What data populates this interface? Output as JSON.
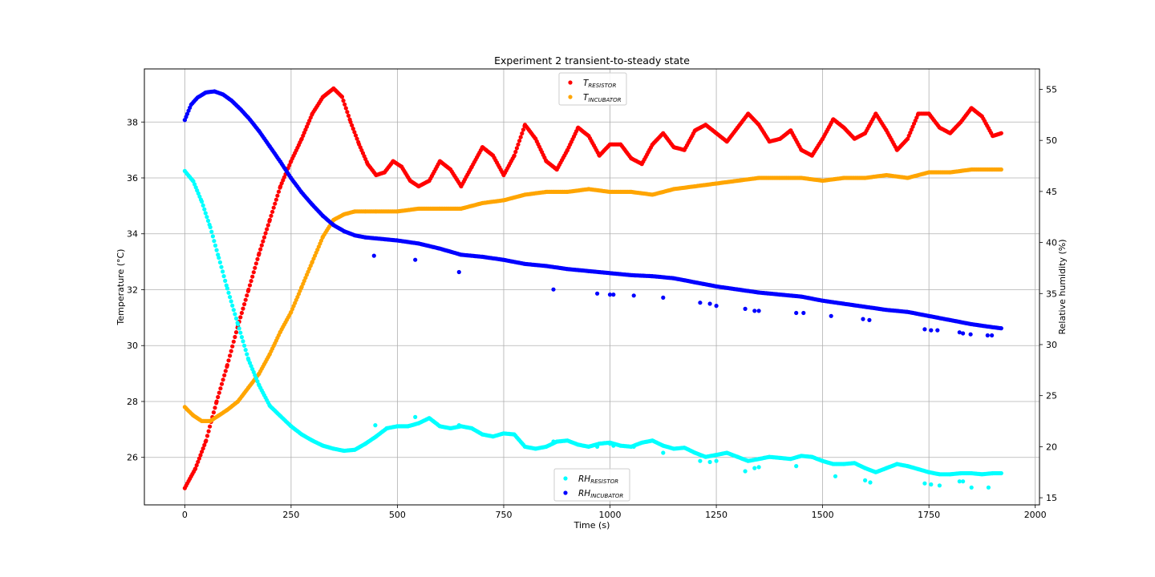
{
  "chart_data": {
    "type": "scatter",
    "title": "Experiment 2 transient-to-steady state",
    "xlabel": "Time (s)",
    "ylabel_left": "Temperature (°C)",
    "ylabel_right": "Relative humidity (%)",
    "xlim": [
      -95,
      2010
    ],
    "ylim_left": [
      24.3,
      39.9
    ],
    "ylim_right": [
      14.3,
      57.0
    ],
    "x_ticks": [
      0,
      250,
      500,
      750,
      1000,
      1250,
      1500,
      1750,
      2000
    ],
    "y_ticks_left": [
      26,
      28,
      30,
      32,
      34,
      36,
      38
    ],
    "y_ticks_right": [
      15,
      20,
      25,
      30,
      35,
      40,
      45,
      50,
      55
    ],
    "grid": true,
    "legends": [
      {
        "placement": "top-center",
        "entries": [
          {
            "series": "T_resistor",
            "base": "T",
            "sub": "RESISTOR"
          },
          {
            "series": "T_incubator",
            "base": "T",
            "sub": "INCUBATOR"
          }
        ]
      },
      {
        "placement": "bottom-center",
        "entries": [
          {
            "series": "RH_resistor",
            "base": "RH",
            "sub": "RESISTOR"
          },
          {
            "series": "RH_incubator",
            "base": "RH",
            "sub": "INCUBATOR"
          }
        ]
      }
    ],
    "series": [
      {
        "key": "T_resistor",
        "axis": "left",
        "color": "#ff0000",
        "x": [
          0,
          25,
          50,
          75,
          100,
          125,
          150,
          175,
          200,
          225,
          250,
          275,
          300,
          325,
          350,
          370,
          390,
          410,
          430,
          450,
          470,
          490,
          510,
          530,
          550,
          575,
          600,
          625,
          650,
          675,
          700,
          725,
          750,
          775,
          800,
          825,
          850,
          875,
          900,
          925,
          950,
          975,
          1000,
          1025,
          1050,
          1075,
          1100,
          1125,
          1150,
          1175,
          1200,
          1225,
          1250,
          1275,
          1300,
          1325,
          1350,
          1375,
          1400,
          1425,
          1450,
          1475,
          1500,
          1525,
          1550,
          1575,
          1600,
          1625,
          1650,
          1675,
          1700,
          1725,
          1750,
          1775,
          1800,
          1825,
          1850,
          1875,
          1900,
          1920
        ],
        "y": [
          24.9,
          25.6,
          26.6,
          28.0,
          29.3,
          30.7,
          32.0,
          33.3,
          34.5,
          35.7,
          36.6,
          37.4,
          38.3,
          38.9,
          39.2,
          38.9,
          38.0,
          37.2,
          36.5,
          36.1,
          36.2,
          36.6,
          36.4,
          35.9,
          35.7,
          35.9,
          36.6,
          36.3,
          35.7,
          36.4,
          37.1,
          36.8,
          36.1,
          36.8,
          37.9,
          37.4,
          36.6,
          36.3,
          37.0,
          37.8,
          37.5,
          36.8,
          37.2,
          37.2,
          36.7,
          36.5,
          37.2,
          37.6,
          37.1,
          37.0,
          37.7,
          37.9,
          37.6,
          37.3,
          37.8,
          38.3,
          37.9,
          37.3,
          37.4,
          37.7,
          37.0,
          36.8,
          37.4,
          38.1,
          37.8,
          37.4,
          37.6,
          38.3,
          37.7,
          37.0,
          37.4,
          38.3,
          38.3,
          37.8,
          37.6,
          38.0,
          38.5,
          38.2,
          37.5,
          37.6
        ]
      },
      {
        "key": "T_incubator",
        "axis": "left",
        "color": "#ffa500",
        "x": [
          0,
          20,
          40,
          60,
          80,
          100,
          125,
          150,
          175,
          200,
          225,
          250,
          275,
          300,
          325,
          350,
          375,
          400,
          425,
          450,
          500,
          550,
          600,
          650,
          700,
          750,
          800,
          850,
          900,
          950,
          1000,
          1050,
          1100,
          1150,
          1200,
          1250,
          1300,
          1350,
          1400,
          1450,
          1500,
          1550,
          1600,
          1650,
          1700,
          1750,
          1800,
          1850,
          1900,
          1920
        ],
        "y": [
          27.8,
          27.5,
          27.3,
          27.3,
          27.5,
          27.7,
          28.0,
          28.5,
          29.0,
          29.7,
          30.5,
          31.2,
          32.1,
          33.0,
          33.9,
          34.5,
          34.7,
          34.8,
          34.8,
          34.8,
          34.8,
          34.9,
          34.9,
          34.9,
          35.1,
          35.2,
          35.4,
          35.5,
          35.5,
          35.6,
          35.5,
          35.5,
          35.4,
          35.6,
          35.7,
          35.8,
          35.9,
          36.0,
          36.0,
          36.0,
          35.9,
          36.0,
          36.0,
          36.1,
          36.0,
          36.2,
          36.2,
          36.3,
          36.3,
          36.3
        ]
      },
      {
        "key": "RH_resistor",
        "axis": "right",
        "color": "#00ffff",
        "x": [
          0,
          20,
          40,
          60,
          80,
          100,
          125,
          150,
          175,
          200,
          225,
          250,
          275,
          300,
          325,
          350,
          375,
          400,
          425,
          450,
          475,
          500,
          525,
          550,
          575,
          600,
          625,
          650,
          675,
          700,
          725,
          750,
          775,
          800,
          825,
          850,
          875,
          900,
          925,
          950,
          975,
          1000,
          1025,
          1050,
          1075,
          1100,
          1125,
          1150,
          1175,
          1200,
          1225,
          1250,
          1275,
          1300,
          1325,
          1350,
          1375,
          1400,
          1425,
          1450,
          1475,
          1500,
          1525,
          1550,
          1575,
          1600,
          1625,
          1650,
          1675,
          1700,
          1725,
          1750,
          1775,
          1800,
          1825,
          1850,
          1875,
          1900,
          1920
        ],
        "y": [
          47.0,
          46.0,
          44.0,
          41.5,
          38.5,
          35.5,
          32.0,
          28.5,
          26.0,
          24.0,
          23.0,
          22.0,
          21.2,
          20.6,
          20.1,
          19.8,
          19.6,
          19.7,
          20.3,
          21.0,
          21.8,
          22.0,
          22.0,
          22.3,
          22.8,
          22.0,
          21.8,
          22.0,
          21.8,
          21.2,
          21.0,
          21.3,
          21.2,
          20.0,
          19.8,
          20.0,
          20.5,
          20.6,
          20.2,
          20.0,
          20.3,
          20.4,
          20.1,
          20.0,
          20.4,
          20.6,
          20.1,
          19.8,
          19.9,
          19.4,
          19.0,
          19.2,
          19.4,
          19.0,
          18.6,
          18.8,
          19.0,
          18.9,
          18.8,
          19.1,
          19.0,
          18.6,
          18.3,
          18.3,
          18.4,
          17.9,
          17.5,
          17.9,
          18.3,
          18.1,
          17.8,
          17.5,
          17.3,
          17.3,
          17.4,
          17.4,
          17.3,
          17.4,
          17.4
        ]
      },
      {
        "key": "RH_incubator",
        "axis": "right",
        "color": "#0000ff",
        "x": [
          0,
          15,
          30,
          50,
          70,
          90,
          110,
          130,
          150,
          175,
          200,
          225,
          250,
          275,
          300,
          325,
          350,
          375,
          400,
          425,
          450,
          500,
          550,
          600,
          650,
          700,
          750,
          800,
          850,
          900,
          950,
          1000,
          1050,
          1100,
          1150,
          1200,
          1250,
          1300,
          1350,
          1400,
          1450,
          1500,
          1550,
          1600,
          1650,
          1700,
          1750,
          1800,
          1850,
          1900,
          1920
        ],
        "y": [
          52.0,
          53.5,
          54.2,
          54.7,
          54.8,
          54.5,
          53.9,
          53.1,
          52.2,
          50.9,
          49.4,
          47.9,
          46.3,
          44.9,
          43.7,
          42.6,
          41.7,
          41.1,
          40.7,
          40.5,
          40.4,
          40.2,
          39.9,
          39.4,
          38.8,
          38.6,
          38.3,
          37.9,
          37.7,
          37.4,
          37.2,
          37.0,
          36.8,
          36.7,
          36.5,
          36.1,
          35.7,
          35.4,
          35.1,
          34.9,
          34.7,
          34.3,
          34.0,
          33.7,
          33.4,
          33.2,
          32.8,
          32.4,
          32.0,
          31.7,
          31.6
        ]
      },
      {
        "key": "RH_incubator_outliers",
        "axis": "right",
        "color": "#0000ff",
        "x": [
          0,
          445,
          542,
          645,
          867,
          970,
          1000,
          1008,
          1056,
          1125,
          1212,
          1235,
          1250,
          1318,
          1340,
          1350,
          1438,
          1455,
          1520,
          1595,
          1610,
          1740,
          1755,
          1770,
          1822,
          1830,
          1848,
          1888,
          1898
        ],
        "y": [
          52.0,
          38.7,
          38.3,
          37.1,
          35.4,
          35.0,
          34.9,
          34.9,
          34.8,
          34.6,
          34.1,
          34.0,
          33.8,
          33.5,
          33.3,
          33.3,
          33.1,
          33.1,
          32.8,
          32.5,
          32.4,
          31.5,
          31.4,
          31.4,
          31.2,
          31.1,
          31.0,
          30.9,
          30.9
        ]
      },
      {
        "key": "RH_resistor_outliers",
        "axis": "right",
        "color": "#00ffff",
        "x": [
          448,
          542,
          645,
          867,
          970,
          1000,
          1008,
          1056,
          1125,
          1212,
          1235,
          1250,
          1318,
          1340,
          1350,
          1438,
          1530,
          1600,
          1612,
          1740,
          1755,
          1775,
          1822,
          1830,
          1850,
          1890
        ],
        "y": [
          22.1,
          22.9,
          22.1,
          20.5,
          20.0,
          20.3,
          20.1,
          20.0,
          19.4,
          18.6,
          18.5,
          18.6,
          17.6,
          17.9,
          18.0,
          18.1,
          17.1,
          16.7,
          16.5,
          16.4,
          16.3,
          16.2,
          16.6,
          16.6,
          16.0,
          16.0
        ]
      }
    ]
  }
}
